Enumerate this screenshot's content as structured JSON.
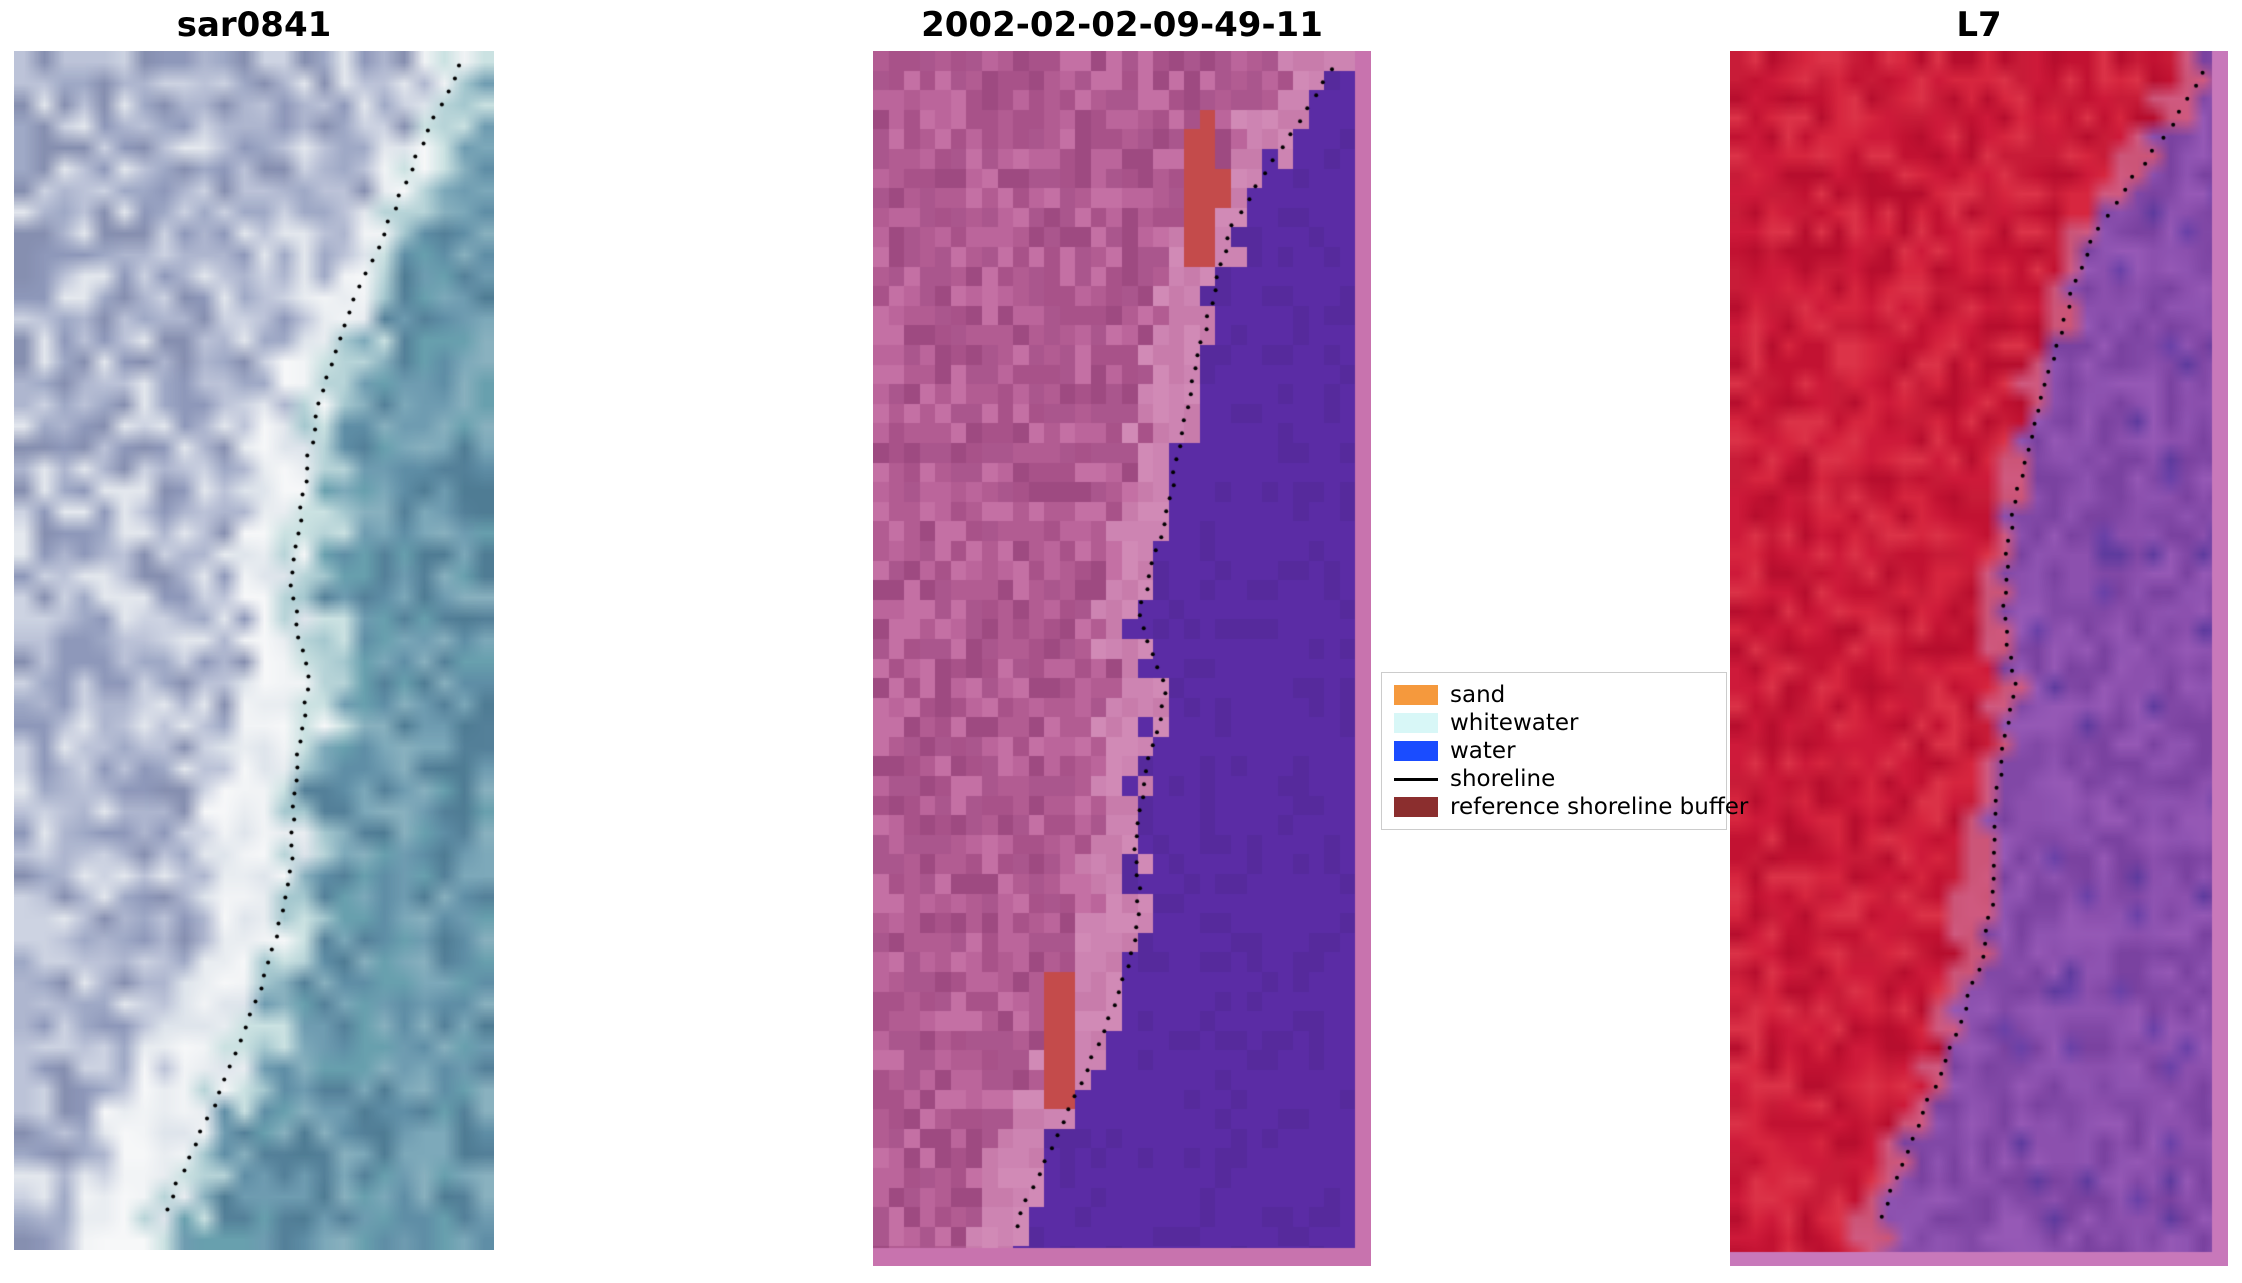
{
  "chart_data": {
    "type": "heatmap",
    "panels": [
      {
        "title": "sar0841",
        "kind": "sar-rgb-image",
        "seed": 11,
        "grid": {
          "cols": 24,
          "rows": 56
        },
        "smooth": true,
        "edge_jitter": 0.1,
        "land_colors": [
          "#9fa9c6",
          "#8e98ba",
          "#aeb6cf",
          "#bcc3d8",
          "#868fb0",
          "#cdd3e2",
          "#e4e8ee"
        ],
        "beach": {
          "w0": 0.06,
          "w1": 0.14,
          "colors": [
            "#f2f4f6",
            "#e9edf1",
            "#dfe5ec",
            "#f7f8f9"
          ]
        },
        "water_fringe": {
          "width": 0.06,
          "colors": [
            "#b7d4d8",
            "#a5c8cf",
            "#cbe2e2"
          ]
        },
        "water_colors": [
          "#6f9cb1",
          "#5f8ea6",
          "#7da9ba",
          "#548099",
          "#89b1bf",
          "#68a0ae"
        ],
        "water_speckle": {
          "min_d": 0.1,
          "prob": 0.1,
          "colors": [
            "#4f7c94"
          ]
        },
        "shoreline_color": "#000000",
        "dot_step": 13,
        "shoreline": [
          [
            0.93,
            0.012
          ],
          [
            0.87,
            0.06
          ],
          [
            0.81,
            0.115
          ],
          [
            0.75,
            0.17
          ],
          [
            0.69,
            0.225
          ],
          [
            0.645,
            0.28
          ],
          [
            0.615,
            0.335
          ],
          [
            0.595,
            0.39
          ],
          [
            0.58,
            0.445
          ],
          [
            0.595,
            0.49
          ],
          [
            0.615,
            0.525
          ],
          [
            0.6,
            0.565
          ],
          [
            0.585,
            0.615
          ],
          [
            0.58,
            0.665
          ],
          [
            0.565,
            0.71
          ],
          [
            0.54,
            0.75
          ],
          [
            0.5,
            0.795
          ],
          [
            0.455,
            0.84
          ],
          [
            0.41,
            0.885
          ],
          [
            0.355,
            0.93
          ],
          [
            0.31,
            0.972
          ]
        ]
      },
      {
        "title": "2002-02-02-09-49-11",
        "kind": "classified-image",
        "seed": 23,
        "grid": {
          "cols": 32,
          "rows": 62
        },
        "smooth": false,
        "edge_jitter": 0.07,
        "land_colors": [
          "#b25c92",
          "#a85289",
          "#bb659b",
          "#9e4a81",
          "#c470a4",
          "#aa568d"
        ],
        "land_fringe": {
          "width": 0.1,
          "colors": [
            "#cd84b2",
            "#c87cab",
            "#d18ab6"
          ]
        },
        "water_colors": [
          "#5b2ca5",
          "#5b2ca5",
          "#5b2ca5",
          "#562a9c"
        ],
        "patches": [
          {
            "cx": 0.66,
            "cy": 0.115,
            "rx": 0.045,
            "ry": 0.062,
            "color": "#c44b4b"
          },
          {
            "cx": 0.38,
            "cy": 0.815,
            "rx": 0.04,
            "ry": 0.058,
            "color": "#c44b4b"
          }
        ],
        "borders": [
          {
            "side": "right",
            "size": 16,
            "color": "#c873ae"
          },
          {
            "side": "bottom",
            "size": 18,
            "color": "#c873ae"
          }
        ],
        "shoreline_color": "#000000",
        "dot_step": 13,
        "shoreline": [
          [
            0.92,
            0.015
          ],
          [
            0.86,
            0.055
          ],
          [
            0.79,
            0.1
          ],
          [
            0.725,
            0.14
          ],
          [
            0.69,
            0.19
          ],
          [
            0.66,
            0.24
          ],
          [
            0.635,
            0.29
          ],
          [
            0.61,
            0.34
          ],
          [
            0.585,
            0.385
          ],
          [
            0.555,
            0.43
          ],
          [
            0.535,
            0.465
          ],
          [
            0.565,
            0.5
          ],
          [
            0.59,
            0.525
          ],
          [
            0.565,
            0.565
          ],
          [
            0.54,
            0.61
          ],
          [
            0.525,
            0.655
          ],
          [
            0.535,
            0.695
          ],
          [
            0.52,
            0.74
          ],
          [
            0.495,
            0.775
          ],
          [
            0.455,
            0.815
          ],
          [
            0.41,
            0.855
          ],
          [
            0.36,
            0.9
          ],
          [
            0.31,
            0.945
          ],
          [
            0.285,
            0.97
          ]
        ]
      },
      {
        "title": "L7",
        "kind": "landsat7-image",
        "seed": 37,
        "grid": {
          "cols": 30,
          "rows": 64
        },
        "smooth": true,
        "edge_jitter": 0.06,
        "land_colors": [
          "#ce1a3a",
          "#c21232",
          "#d7263f",
          "#b70e2e",
          "#dc3348",
          "#c81c38"
        ],
        "land_fringe": {
          "width": 0.05,
          "colors": [
            "#d05a80",
            "#cc5578"
          ]
        },
        "water_colors": [
          "#8c50ae",
          "#8148a6",
          "#9659b6",
          "#7a42a0",
          "#8f54b2"
        ],
        "water_speckle": {
          "min_d": 0.08,
          "prob": 0.08,
          "colors": [
            "#5e3b9e",
            "#6a41a8"
          ]
        },
        "borders": [
          {
            "side": "right",
            "size": 16,
            "color": "#c878ba"
          },
          {
            "side": "bottom",
            "size": 14,
            "color": "#c878ba"
          }
        ],
        "shoreline_color": "#000000",
        "dot_step": 13,
        "shoreline": [
          [
            0.95,
            0.018
          ],
          [
            0.88,
            0.065
          ],
          [
            0.8,
            0.11
          ],
          [
            0.73,
            0.15
          ],
          [
            0.685,
            0.2
          ],
          [
            0.65,
            0.25
          ],
          [
            0.615,
            0.3
          ],
          [
            0.585,
            0.35
          ],
          [
            0.56,
            0.4
          ],
          [
            0.55,
            0.45
          ],
          [
            0.56,
            0.495
          ],
          [
            0.575,
            0.525
          ],
          [
            0.55,
            0.57
          ],
          [
            0.535,
            0.615
          ],
          [
            0.53,
            0.66
          ],
          [
            0.525,
            0.705
          ],
          [
            0.505,
            0.75
          ],
          [
            0.465,
            0.795
          ],
          [
            0.425,
            0.84
          ],
          [
            0.375,
            0.885
          ],
          [
            0.335,
            0.925
          ],
          [
            0.3,
            0.965
          ]
        ]
      }
    ],
    "legend": {
      "items": [
        {
          "label": "sand",
          "color": "#f5993d",
          "kind": "patch"
        },
        {
          "label": "whitewater",
          "color": "#d8f7f7",
          "kind": "patch"
        },
        {
          "label": "water",
          "color": "#1a4cff",
          "kind": "patch"
        },
        {
          "label": "shoreline",
          "color": "#000000",
          "kind": "line"
        },
        {
          "label": "reference shoreline buffer",
          "color": "#8b2e2e",
          "kind": "patch"
        }
      ]
    }
  }
}
